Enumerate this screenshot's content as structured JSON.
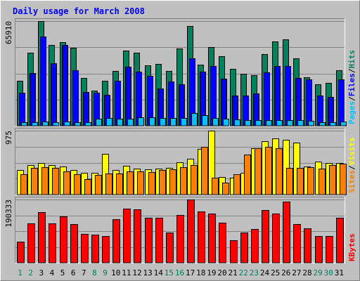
{
  "chart_data": {
    "type": "bar",
    "title": "Daily usage for March 2008",
    "categories": [
      "1",
      "2",
      "3",
      "4",
      "5",
      "6",
      "7",
      "8",
      "9",
      "10",
      "11",
      "12",
      "13",
      "14",
      "15",
      "16",
      "17",
      "18",
      "19",
      "20",
      "21",
      "22",
      "23",
      "24",
      "25",
      "26",
      "27",
      "28",
      "29",
      "30",
      "31"
    ],
    "weekend_days": [
      "1",
      "2",
      "8",
      "9",
      "15",
      "16",
      "22",
      "23",
      "29",
      "30"
    ],
    "colors": {
      "title": "#0000ff",
      "background": "#c0c0c0",
      "plot": "#c0c0c0",
      "hits": "#00805c",
      "files": "#0000ff",
      "pages": "#00c0ff",
      "visits": "#ffff00",
      "sites": "#ff8000",
      "kbytes": "#ff0000",
      "weekday_label": "#000000",
      "weekend_label": "#00805c"
    },
    "panels": [
      {
        "id": "hits-files-pages",
        "max_label": "65910",
        "ylim": [
          0,
          65910
        ],
        "legend": [
          {
            "text": "Pages",
            "color": "#00c0ff"
          },
          {
            "text": "/",
            "color": "#000000"
          },
          {
            "text": "Files",
            "color": "#0000ff"
          },
          {
            "text": "/",
            "color": "#000000"
          },
          {
            "text": "Hits",
            "color": "#00805c"
          }
        ],
        "series": [
          {
            "name": "Hits",
            "color": "#00805c",
            "values": [
              28300,
              45800,
              65910,
              50900,
              52800,
              49000,
              30200,
              22000,
              28200,
              34500,
              47400,
              46200,
              37900,
              38900,
              34500,
              48800,
              62700,
              38600,
              49500,
              43700,
              35900,
              32600,
              31700,
              45000,
              53000,
              54300,
              42600,
              30700,
              26200,
              26800,
              35000
            ]
          },
          {
            "name": "Files",
            "color": "#0000ff",
            "values": [
              21000,
              33000,
              56000,
              39500,
              50700,
              34900,
              21200,
              20600,
              19300,
              28300,
              37100,
              34000,
              31400,
              23400,
              27800,
              26200,
              42600,
              34200,
              37400,
              29700,
              18800,
              18900,
              20500,
              33500,
              37400,
              37400,
              30000,
              29100,
              19100,
              18300,
              29000
            ]
          },
          {
            "name": "Pages",
            "color": "#00c0ff",
            "values": [
              2300,
              2300,
              2800,
              2300,
              2800,
              2300,
              2300,
              4600,
              5000,
              4600,
              4600,
              5400,
              5400,
              5000,
              5000,
              5000,
              8000,
              6700,
              5000,
              4600,
              4100,
              3700,
              3700,
              3700,
              3700,
              3700,
              3700,
              3300,
              2300,
              2300,
              2800
            ]
          }
        ]
      },
      {
        "id": "visits-sites",
        "max_label": "975",
        "ylim": [
          0,
          975
        ],
        "legend": [
          {
            "text": "Sites",
            "color": "#ff8000"
          },
          {
            "text": "/",
            "color": "#000000"
          },
          {
            "text": "Visits",
            "color": "#ffff00"
          }
        ],
        "series": [
          {
            "name": "Visits",
            "color": "#ffff00",
            "values": [
              375,
              451,
              485,
              451,
              426,
              375,
              332,
              332,
              617,
              375,
              443,
              392,
              383,
              400,
              409,
              494,
              545,
              698,
              975,
              272,
              255,
              332,
              710,
              815,
              857,
              835,
              793,
              426,
              503,
              485,
              485
            ]
          },
          {
            "name": "Sites",
            "color": "#ff8000",
            "values": [
              307,
              409,
              416,
              409,
              349,
              315,
              238,
              298,
              323,
              323,
              349,
              349,
              340,
              375,
              383,
              418,
              451,
              733,
              255,
              178,
              315,
              613,
              707,
              724,
              707,
              409,
              409,
              418,
              401,
              451,
              469
            ]
          }
        ]
      },
      {
        "id": "kbytes",
        "max_label": "190333",
        "ylim": [
          0,
          190333
        ],
        "legend": [
          {
            "text": "KBytes",
            "color": "#ff0000"
          }
        ],
        "series": [
          {
            "name": "KBytes",
            "color": "#ff0000",
            "values": [
              63000,
              119000,
              153000,
              118000,
              139000,
              116000,
              86500,
              84000,
              80600,
              132000,
              163000,
              160000,
              135000,
              135000,
              90000,
              144000,
              190333,
              155000,
              149000,
              120000,
              67700,
              90000,
              101000,
              158000,
              147000,
              184000,
              117000,
              103000,
              80000,
              80000,
              135000
            ]
          }
        ]
      }
    ]
  }
}
